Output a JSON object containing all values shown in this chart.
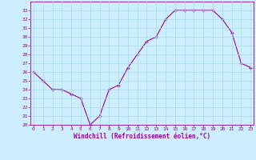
{
  "x": [
    0,
    1,
    2,
    3,
    4,
    5,
    6,
    7,
    8,
    9,
    10,
    11,
    12,
    13,
    14,
    15,
    16,
    17,
    18,
    19,
    20,
    21,
    22,
    23
  ],
  "y": [
    26,
    25,
    24,
    24,
    23.5,
    23,
    20,
    21,
    24,
    24.5,
    26.5,
    28,
    29.5,
    30,
    32,
    33,
    33,
    33,
    33,
    33,
    32,
    30.5,
    27,
    26.5
  ],
  "line_color": "#990099",
  "marker": "+",
  "marker_size": 3,
  "bg_color": "#cceeff",
  "grid_color": "#aadddd",
  "xlabel": "Windchill (Refroidissement éolien,°C)",
  "tick_color": "#990099",
  "ylim": [
    20,
    34
  ],
  "yticks": [
    20,
    21,
    22,
    23,
    24,
    25,
    26,
    27,
    28,
    29,
    30,
    31,
    32,
    33
  ],
  "xticks": [
    0,
    1,
    2,
    3,
    4,
    5,
    6,
    7,
    8,
    9,
    10,
    11,
    12,
    13,
    14,
    15,
    16,
    17,
    18,
    19,
    20,
    21,
    22,
    23
  ],
  "xlim": [
    -0.3,
    23.3
  ]
}
